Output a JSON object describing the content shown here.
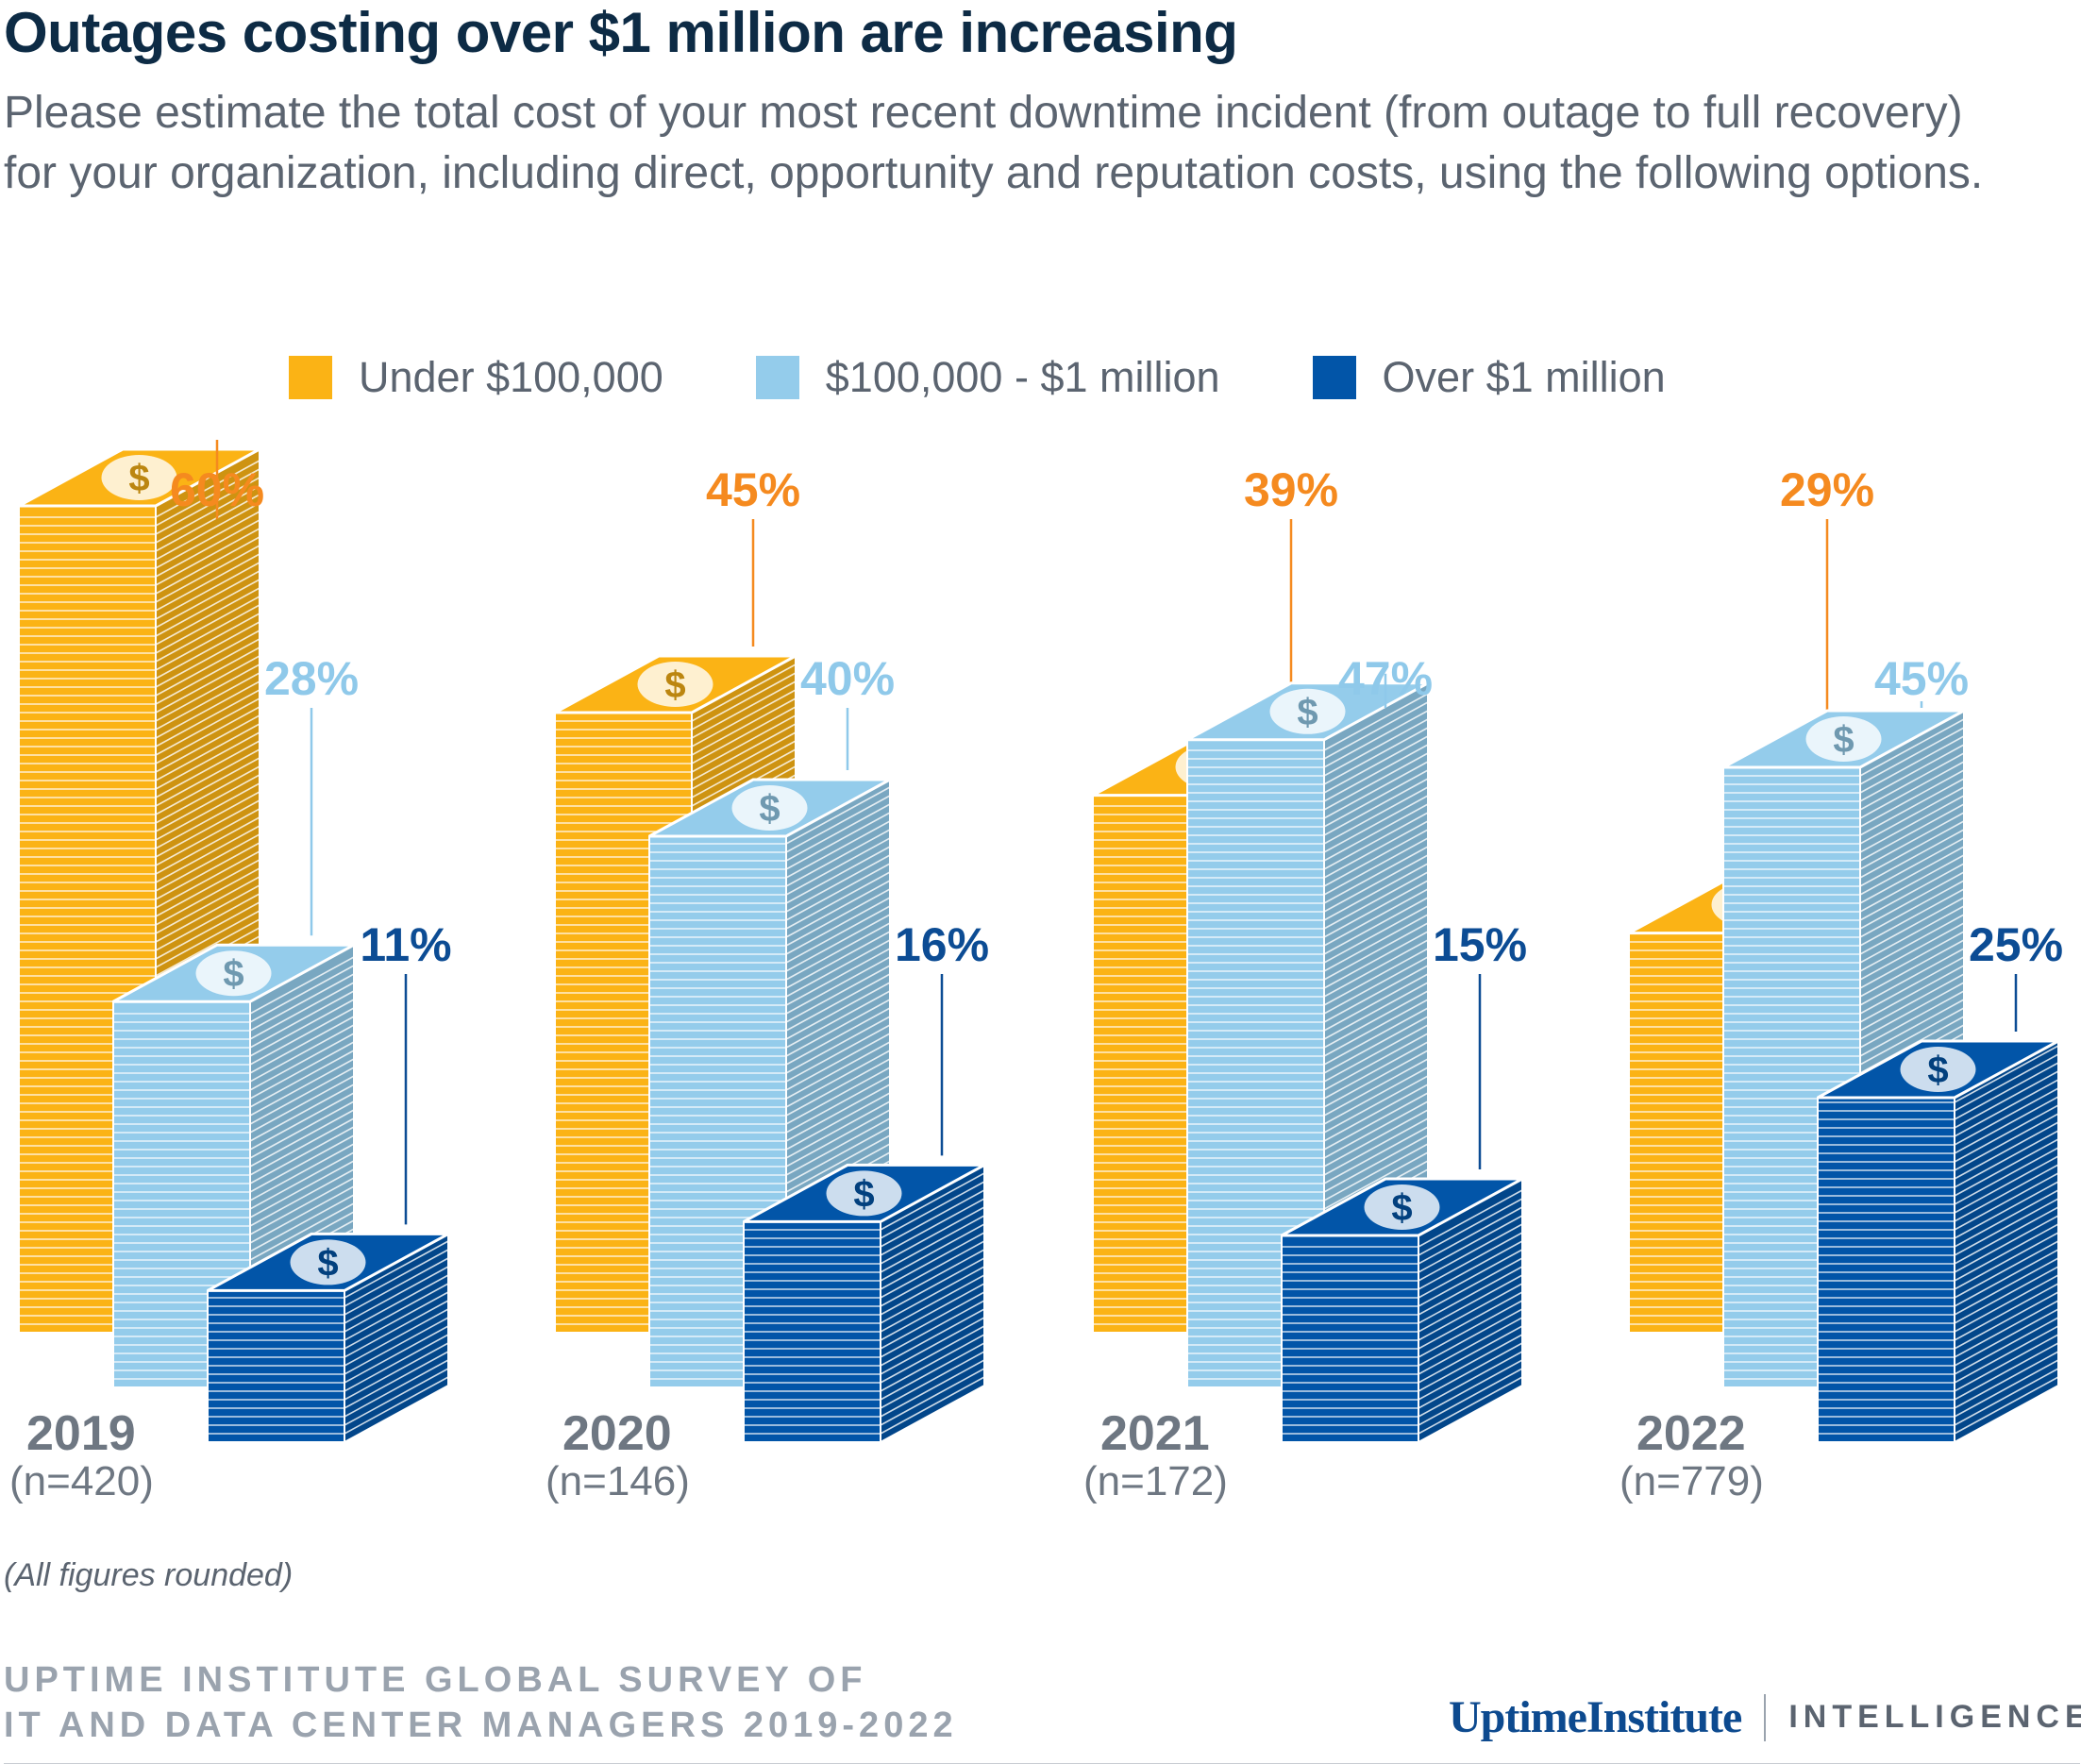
{
  "title": "Outages costing over $1 million are increasing",
  "subtitle": "Please estimate the total cost of your most recent downtime incident (from outage to full recovery) for your organization, including direct, opportunity and reputation costs, using the following options.",
  "colors": {
    "under": "#FBB315",
    "mid": "#94CCEB",
    "over": "#0255A8",
    "under_label": "#F58A1F",
    "mid_label": "#8FC9EA",
    "over_label": "#0C4C94",
    "year_label": "#6E7782"
  },
  "chart_data": {
    "type": "bar",
    "title": "Outages costing over $1 million are increasing",
    "categories": [
      "2019",
      "2020",
      "2021",
      "2022"
    ],
    "sample_sizes": [
      "(n=420)",
      "(n=146)",
      "(n=172)",
      "(n=779)"
    ],
    "series": [
      {
        "name": "Under $100,000",
        "values": [
          60,
          45,
          39,
          29
        ],
        "labels": [
          "60%",
          "45%",
          "39%",
          "29%"
        ]
      },
      {
        "name": "$100,000 - $1 million",
        "values": [
          28,
          40,
          47,
          45
        ],
        "labels": [
          "28%",
          "40%",
          "47%",
          "45%"
        ]
      },
      {
        "name": "Over $1 million",
        "values": [
          11,
          16,
          15,
          25
        ],
        "labels": [
          "11%",
          "16%",
          "15%",
          "25%"
        ]
      }
    ],
    "unit": "%",
    "legend": "top-center",
    "grid": false,
    "xlabel": "",
    "ylabel": ""
  },
  "legend": [
    {
      "label": "Under $100,000"
    },
    {
      "label": "$100,000 - $1 million"
    },
    {
      "label": "Over $1 million"
    }
  ],
  "footnote": "(All figures rounded)",
  "source_line1": "UPTIME INSTITUTE GLOBAL SURVEY OF",
  "source_line2": "IT AND DATA CENTER MANAGERS 2019-2022",
  "brand_name": "UptimeInstitute",
  "brand_tag": "INTELLIGENCE"
}
